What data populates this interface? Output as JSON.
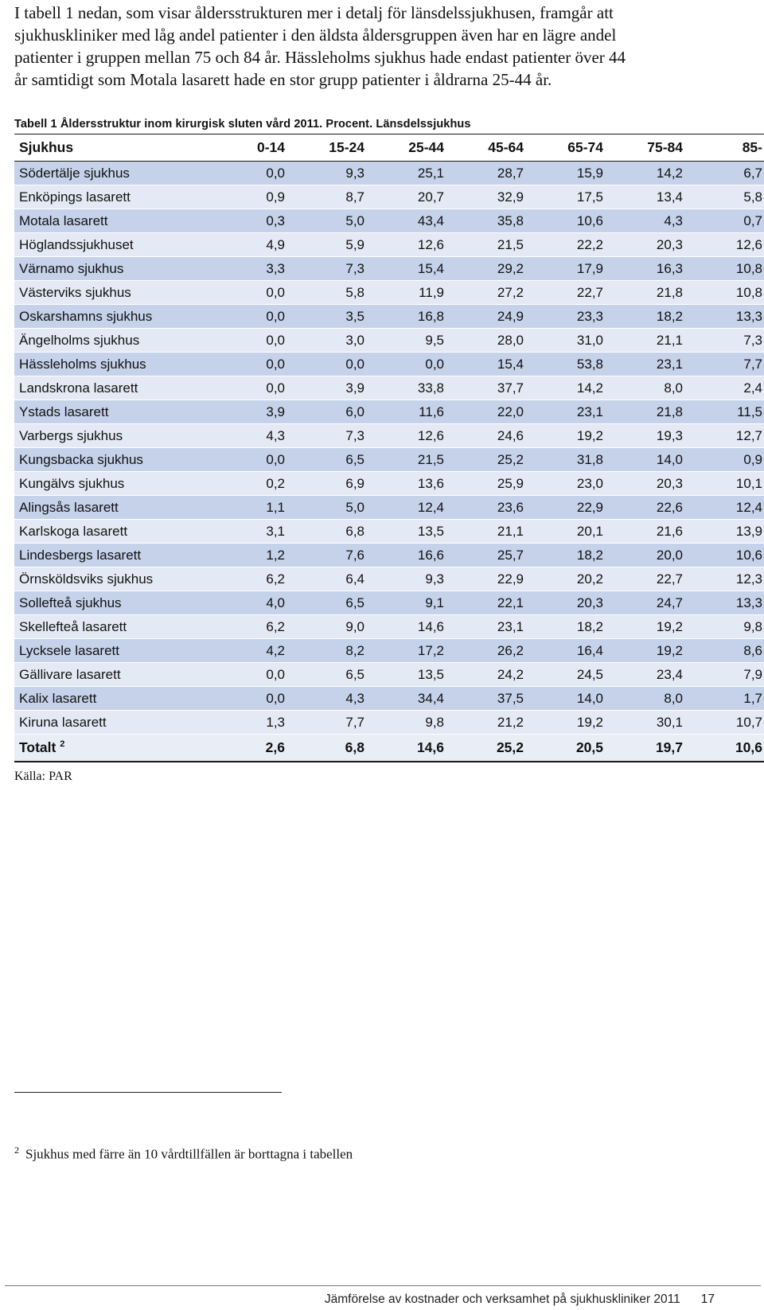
{
  "intro_lines": [
    "I tabell 1 nedan, som visar åldersstrukturen mer i detalj för länsdelssjukhusen, framgår att",
    "sjukhuskliniker med låg andel patienter i den äldsta åldersgruppen även har en lägre andel",
    "patienter i gruppen mellan 75 och 84 år. Hässleholms sjukhus hade endast patienter över 44",
    "år samtidigt som Motala lasarett hade en stor grupp patienter i åldrarna 25-44 år."
  ],
  "table": {
    "caption": "Tabell 1 Åldersstruktur inom kirurgisk sluten vård 2011. Procent. Länsdelssjukhus",
    "headers": [
      "Sjukhus",
      "0-14",
      "15-24",
      "25-44",
      "45-64",
      "65-74",
      "75-84",
      "85-"
    ],
    "rows": [
      [
        "Södertälje sjukhus",
        "0,0",
        "9,3",
        "25,1",
        "28,7",
        "15,9",
        "14,2",
        "6,7"
      ],
      [
        "Enköpings lasarett",
        "0,9",
        "8,7",
        "20,7",
        "32,9",
        "17,5",
        "13,4",
        "5,8"
      ],
      [
        "Motala lasarett",
        "0,3",
        "5,0",
        "43,4",
        "35,8",
        "10,6",
        "4,3",
        "0,7"
      ],
      [
        "Höglandssjukhuset",
        "4,9",
        "5,9",
        "12,6",
        "21,5",
        "22,2",
        "20,3",
        "12,6"
      ],
      [
        "Värnamo sjukhus",
        "3,3",
        "7,3",
        "15,4",
        "29,2",
        "17,9",
        "16,3",
        "10,8"
      ],
      [
        "Västerviks sjukhus",
        "0,0",
        "5,8",
        "11,9",
        "27,2",
        "22,7",
        "21,8",
        "10,8"
      ],
      [
        "Oskarshamns sjukhus",
        "0,0",
        "3,5",
        "16,8",
        "24,9",
        "23,3",
        "18,2",
        "13,3"
      ],
      [
        "Ängelholms sjukhus",
        "0,0",
        "3,0",
        "9,5",
        "28,0",
        "31,0",
        "21,1",
        "7,3"
      ],
      [
        "Hässleholms sjukhus",
        "0,0",
        "0,0",
        "0,0",
        "15,4",
        "53,8",
        "23,1",
        "7,7"
      ],
      [
        "Landskrona lasarett",
        "0,0",
        "3,9",
        "33,8",
        "37,7",
        "14,2",
        "8,0",
        "2,4"
      ],
      [
        "Ystads lasarett",
        "3,9",
        "6,0",
        "11,6",
        "22,0",
        "23,1",
        "21,8",
        "11,5"
      ],
      [
        "Varbergs sjukhus",
        "4,3",
        "7,3",
        "12,6",
        "24,6",
        "19,2",
        "19,3",
        "12,7"
      ],
      [
        "Kungsbacka sjukhus",
        "0,0",
        "6,5",
        "21,5",
        "25,2",
        "31,8",
        "14,0",
        "0,9"
      ],
      [
        "Kungälvs sjukhus",
        "0,2",
        "6,9",
        "13,6",
        "25,9",
        "23,0",
        "20,3",
        "10,1"
      ],
      [
        "Alingsås lasarett",
        "1,1",
        "5,0",
        "12,4",
        "23,6",
        "22,9",
        "22,6",
        "12,4"
      ],
      [
        "Karlskoga lasarett",
        "3,1",
        "6,8",
        "13,5",
        "21,1",
        "20,1",
        "21,6",
        "13,9"
      ],
      [
        "Lindesbergs lasarett",
        "1,2",
        "7,6",
        "16,6",
        "25,7",
        "18,2",
        "20,0",
        "10,6"
      ],
      [
        "Örnsköldsviks sjukhus",
        "6,2",
        "6,4",
        "9,3",
        "22,9",
        "20,2",
        "22,7",
        "12,3"
      ],
      [
        "Sollefteå sjukhus",
        "4,0",
        "6,5",
        "9,1",
        "22,1",
        "20,3",
        "24,7",
        "13,3"
      ],
      [
        "Skellefteå lasarett",
        "6,2",
        "9,0",
        "14,6",
        "23,1",
        "18,2",
        "19,2",
        "9,8"
      ],
      [
        "Lycksele lasarett",
        "4,2",
        "8,2",
        "17,2",
        "26,2",
        "16,4",
        "19,2",
        "8,6"
      ],
      [
        "Gällivare lasarett",
        "0,0",
        "6,5",
        "13,5",
        "24,2",
        "24,5",
        "23,4",
        "7,9"
      ],
      [
        "Kalix lasarett",
        "0,0",
        "4,3",
        "34,4",
        "37,5",
        "14,0",
        "8,0",
        "1,7"
      ],
      [
        "Kiruna lasarett",
        "1,3",
        "7,7",
        "9,8",
        "21,2",
        "19,2",
        "30,1",
        "10,7"
      ]
    ],
    "total": {
      "label": "Totalt",
      "note_marker": "2",
      "values": [
        "2,6",
        "6,8",
        "14,6",
        "25,2",
        "20,5",
        "19,7",
        "10,6"
      ]
    },
    "source": "Källa: PAR"
  },
  "footnote": {
    "marker": "2",
    "text": "Sjukhus med färre än 10 vårdtillfällen är borttagna i tabellen"
  },
  "footer": {
    "title": "Jämförelse av kostnader och verksamhet på sjukhuskliniker 2011",
    "page_number": "17"
  },
  "colors": {
    "row_odd": "#c5d2ea",
    "row_even": "#e4eaf5",
    "total_row": "#e8edf6",
    "rule": "#1a1a1a"
  }
}
